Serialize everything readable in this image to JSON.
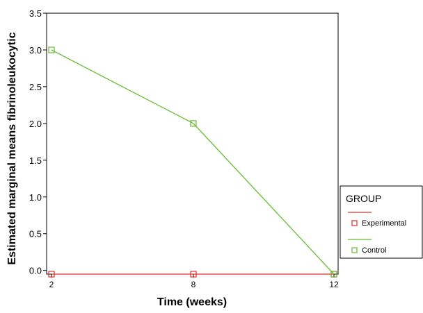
{
  "chart_data": {
    "type": "line",
    "title": "",
    "xlabel": "Time (weeks)",
    "ylabel": "Estimated marginal means fibrinoleukocytic",
    "x": [
      "2",
      "8",
      "12"
    ],
    "ylim": [
      -0.05,
      3.5
    ],
    "yticks": [
      0.0,
      0.5,
      1.0,
      1.5,
      2.0,
      2.5,
      3.0,
      3.5
    ],
    "ytick_labels": [
      "0.0",
      "0.5",
      "1.0",
      "1.5",
      "2.0",
      "2.5",
      "3.0",
      "3.5"
    ],
    "series": [
      {
        "name": "Experimental",
        "values": [
          -0.05,
          -0.05,
          -0.05
        ],
        "color": "#e0302a"
      },
      {
        "name": "Control",
        "values": [
          3.0,
          2.0,
          -0.05
        ],
        "color": "#66bb33"
      }
    ],
    "legend": {
      "title": "GROUP",
      "position": "right"
    },
    "grid": false
  }
}
